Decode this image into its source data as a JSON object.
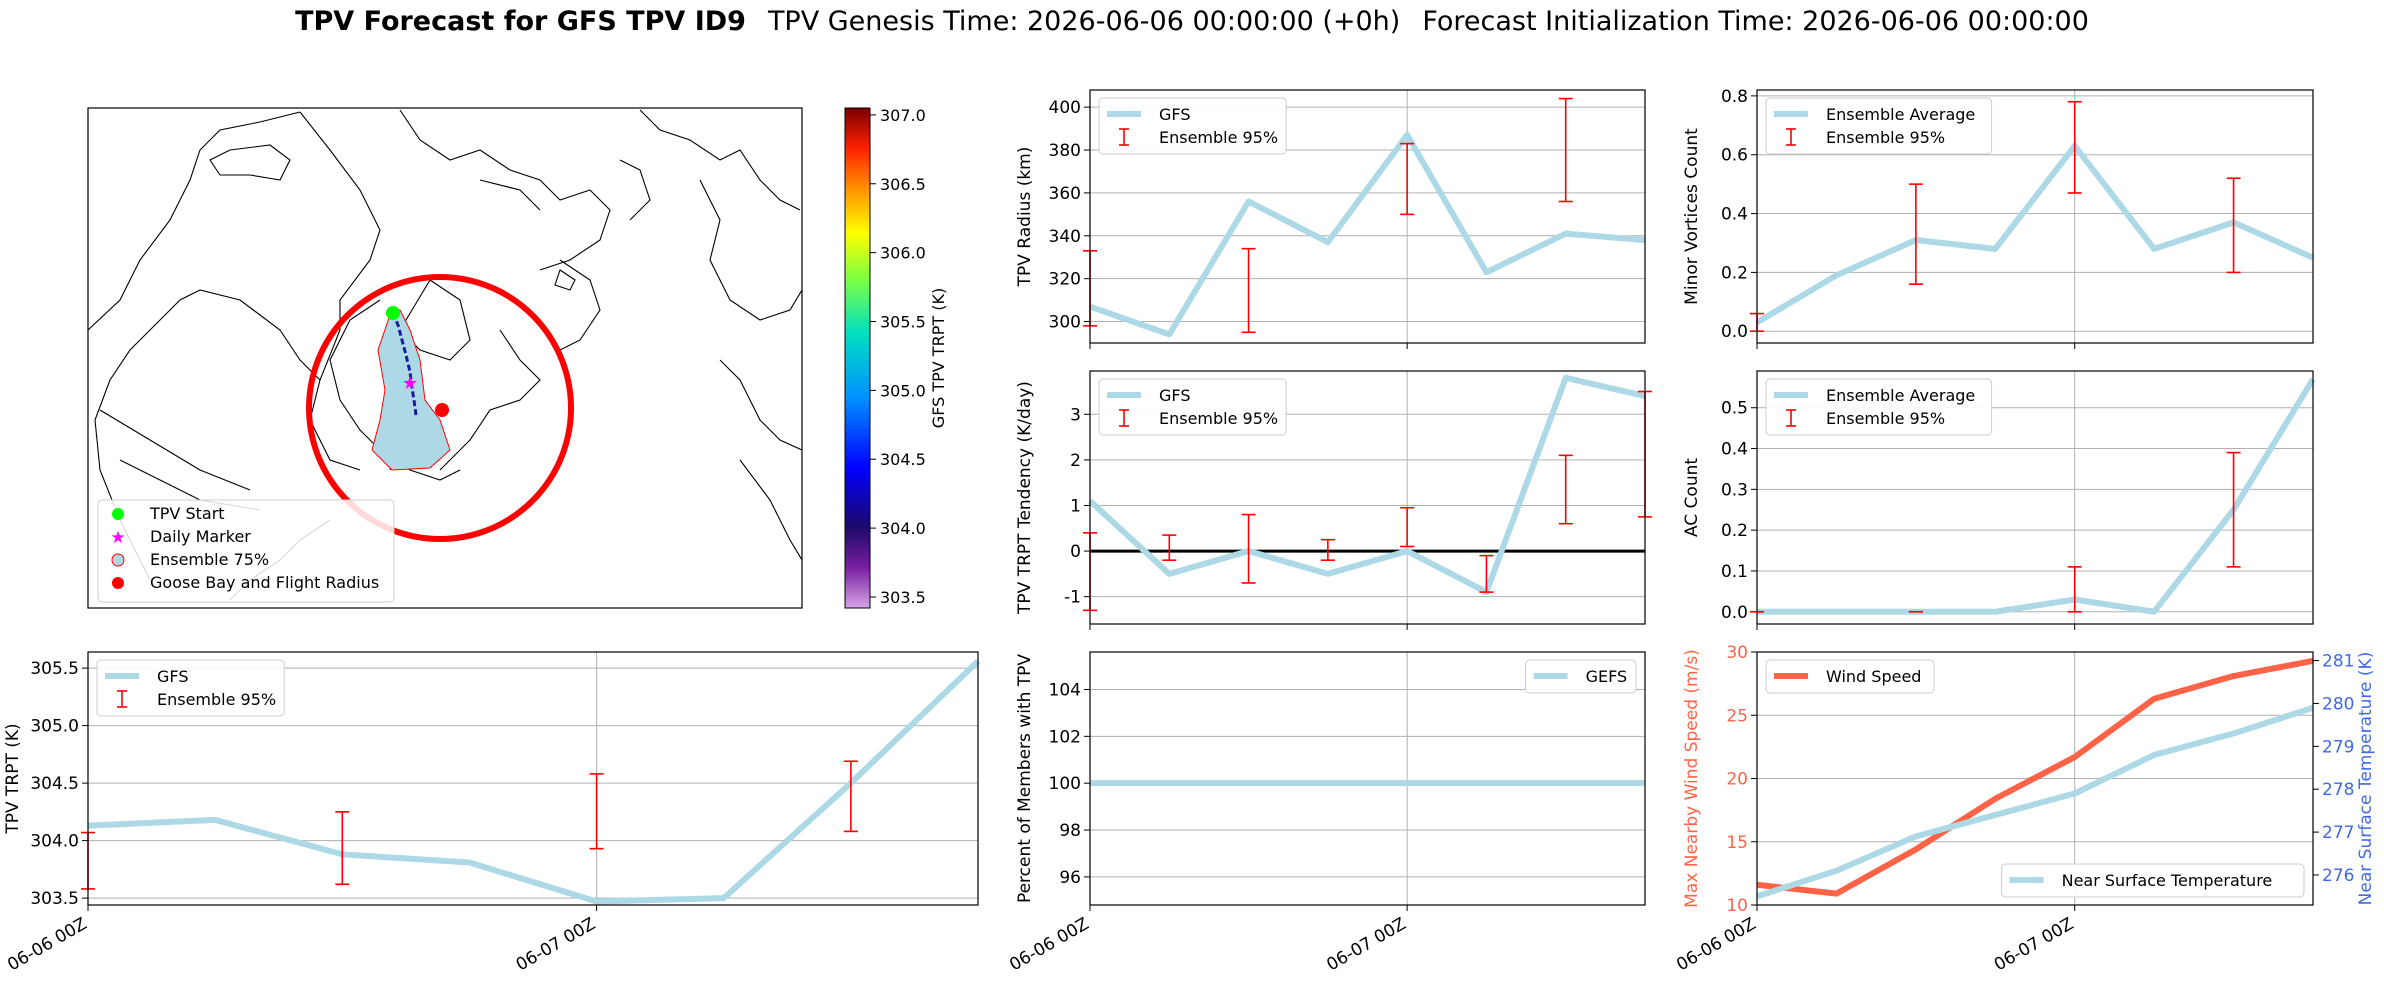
{
  "header": {
    "title_bold": "TPV Forecast for GFS TPV ID9",
    "genesis": "TPV Genesis Time: 2026-06-06 00:00:00 (+0h)",
    "init": "Forecast Initialization Time: 2026-06-06 00:00:00"
  },
  "colors": {
    "gfs_line": "#add8e6",
    "error_bar": "#ff0000",
    "wind_line": "#ff6347",
    "temp_axis": "#4169e1",
    "start_marker": "#00ff00",
    "daily_marker": "#ff00ff",
    "radius": "#ff0000"
  },
  "map": {
    "legend": [
      "TPV Start",
      "Daily Marker",
      "Ensemble 75%",
      "Goose Bay and Flight Radius"
    ],
    "colorbar_label": "GFS TPV TRPT (K)",
    "colorbar_ticks": [
      "307.0",
      "306.5",
      "306.0",
      "305.5",
      "305.0",
      "304.5",
      "304.0",
      "303.5"
    ]
  },
  "chart_data": [
    {
      "id": "radius",
      "type": "line",
      "ylabel": "TPV Radius (km)",
      "ylim": [
        290,
        408
      ],
      "yticks": [
        300,
        320,
        340,
        360,
        380,
        400
      ],
      "x": [
        0,
        6,
        12,
        18,
        24,
        30,
        36,
        42
      ],
      "series": [
        {
          "name": "GFS",
          "values": [
            307,
            294,
            356,
            337,
            387,
            323,
            341,
            338
          ]
        }
      ],
      "errorbars": {
        "name": "Ensemble 95%",
        "x": [
          0,
          12,
          24,
          36
        ],
        "low": [
          298,
          295,
          350,
          356
        ],
        "high": [
          333,
          334,
          383,
          404
        ]
      },
      "legend": "top-left",
      "grid": true
    },
    {
      "id": "minor",
      "type": "line",
      "ylabel": "Minor Vortices Count",
      "ylim": [
        -0.04,
        0.82
      ],
      "yticks": [
        0.0,
        0.2,
        0.4,
        0.6,
        0.8
      ],
      "yfmt": 1,
      "x": [
        0,
        6,
        12,
        18,
        24,
        30,
        36,
        42
      ],
      "series": [
        {
          "name": "Ensemble Average",
          "values": [
            0.03,
            0.19,
            0.31,
            0.28,
            0.63,
            0.28,
            0.37,
            0.25
          ]
        }
      ],
      "errorbars": {
        "name": "Ensemble 95%",
        "x": [
          0,
          12,
          24,
          36
        ],
        "low": [
          0.0,
          0.16,
          0.47,
          0.2
        ],
        "high": [
          0.06,
          0.5,
          0.78,
          0.52
        ]
      },
      "legend": "top-left",
      "grid": true
    },
    {
      "id": "tendency",
      "type": "line",
      "ylabel": "TPV TRPT Tendency (K/day)",
      "ylim": [
        -1.6,
        3.95
      ],
      "yticks": [
        -1,
        0,
        1,
        2,
        3
      ],
      "x": [
        0,
        6,
        12,
        18,
        24,
        30,
        36,
        42
      ],
      "series": [
        {
          "name": "GFS",
          "values": [
            1.1,
            -0.5,
            0.0,
            -0.5,
            0.0,
            -0.9,
            3.8,
            3.4
          ]
        }
      ],
      "errorbars": {
        "name": "Ensemble 95%",
        "x": [
          0,
          6,
          12,
          18,
          24,
          30,
          36,
          42
        ],
        "low": [
          -1.3,
          -0.2,
          -0.7,
          -0.2,
          0.1,
          -0.9,
          0.6,
          0.75
        ],
        "high": [
          0.4,
          0.35,
          0.8,
          0.25,
          0.95,
          -0.1,
          2.1,
          3.5
        ]
      },
      "zeroline": true,
      "legend": "top-left",
      "grid": true
    },
    {
      "id": "ac",
      "type": "line",
      "ylabel": "AC Count",
      "ylim": [
        -0.03,
        0.59
      ],
      "yticks": [
        0.0,
        0.1,
        0.2,
        0.3,
        0.4,
        0.5
      ],
      "yfmt": 1,
      "x": [
        0,
        6,
        12,
        18,
        24,
        30,
        36,
        42
      ],
      "series": [
        {
          "name": "Ensemble Average",
          "values": [
            0.0,
            0.0,
            0.0,
            0.0,
            0.03,
            0.0,
            0.25,
            0.57
          ]
        }
      ],
      "errorbars": {
        "name": "Ensemble 95%",
        "x": [
          0,
          12,
          24,
          36
        ],
        "low": [
          0.0,
          0.0,
          0.0,
          0.11
        ],
        "high": [
          0.0,
          0.0,
          0.11,
          0.39
        ]
      },
      "legend": "top-left",
      "grid": true
    },
    {
      "id": "trpt",
      "type": "line",
      "ylabel": "TPV TRPT (K)",
      "ylim": [
        303.44,
        305.64
      ],
      "yticks": [
        303.5,
        304.0,
        304.5,
        305.0,
        305.5
      ],
      "yfmt": 1,
      "x": [
        0,
        6,
        12,
        18,
        24,
        30,
        36,
        42
      ],
      "series": [
        {
          "name": "GFS",
          "values": [
            304.13,
            304.18,
            303.88,
            303.81,
            303.47,
            303.5,
            304.5,
            305.56
          ]
        }
      ],
      "errorbars": {
        "name": "Ensemble 95%",
        "x": [
          0,
          12,
          24,
          36
        ],
        "low": [
          303.58,
          303.62,
          303.93,
          304.08
        ],
        "high": [
          304.07,
          304.25,
          304.58,
          304.69
        ]
      },
      "legend": "top-left",
      "grid": true
    },
    {
      "id": "percent",
      "type": "line",
      "ylabel": "Percent of Members with TPV",
      "ylim": [
        94.8,
        105.6
      ],
      "yticks": [
        96,
        98,
        100,
        102,
        104
      ],
      "x": [
        0,
        6,
        12,
        18,
        24,
        30,
        36,
        42
      ],
      "series": [
        {
          "name": "GEFS",
          "values": [
            100,
            100,
            100,
            100,
            100,
            100,
            100,
            100
          ]
        }
      ],
      "legend": "top-right",
      "grid": true
    },
    {
      "id": "wind",
      "type": "line",
      "ylabel": "Max Nearby Wind Speed (m/s)",
      "ylim": [
        10,
        30
      ],
      "yticks": [
        10,
        15,
        20,
        25,
        30
      ],
      "y2label": "Near Surface Temperature (K)",
      "y2lim": [
        275.3,
        281.2
      ],
      "y2ticks": [
        276,
        277,
        278,
        279,
        280,
        281
      ],
      "x": [
        0,
        6,
        12,
        18,
        24,
        30,
        36,
        42
      ],
      "series": [
        {
          "name": "Wind Speed",
          "values": [
            11.6,
            10.9,
            14.4,
            18.4,
            21.7,
            26.3,
            28.1,
            29.3
          ],
          "axis": "left"
        },
        {
          "name": "Near Surface Temperature",
          "values": [
            275.5,
            276.1,
            276.9,
            277.4,
            277.9,
            278.8,
            279.3,
            279.9
          ],
          "axis": "right"
        }
      ],
      "legend": [
        "top-left",
        "bottom-right"
      ],
      "grid": true
    }
  ],
  "x_ticks": {
    "labels": [
      "06-06 00Z",
      "06-07 00Z"
    ],
    "values": [
      0,
      24
    ]
  }
}
